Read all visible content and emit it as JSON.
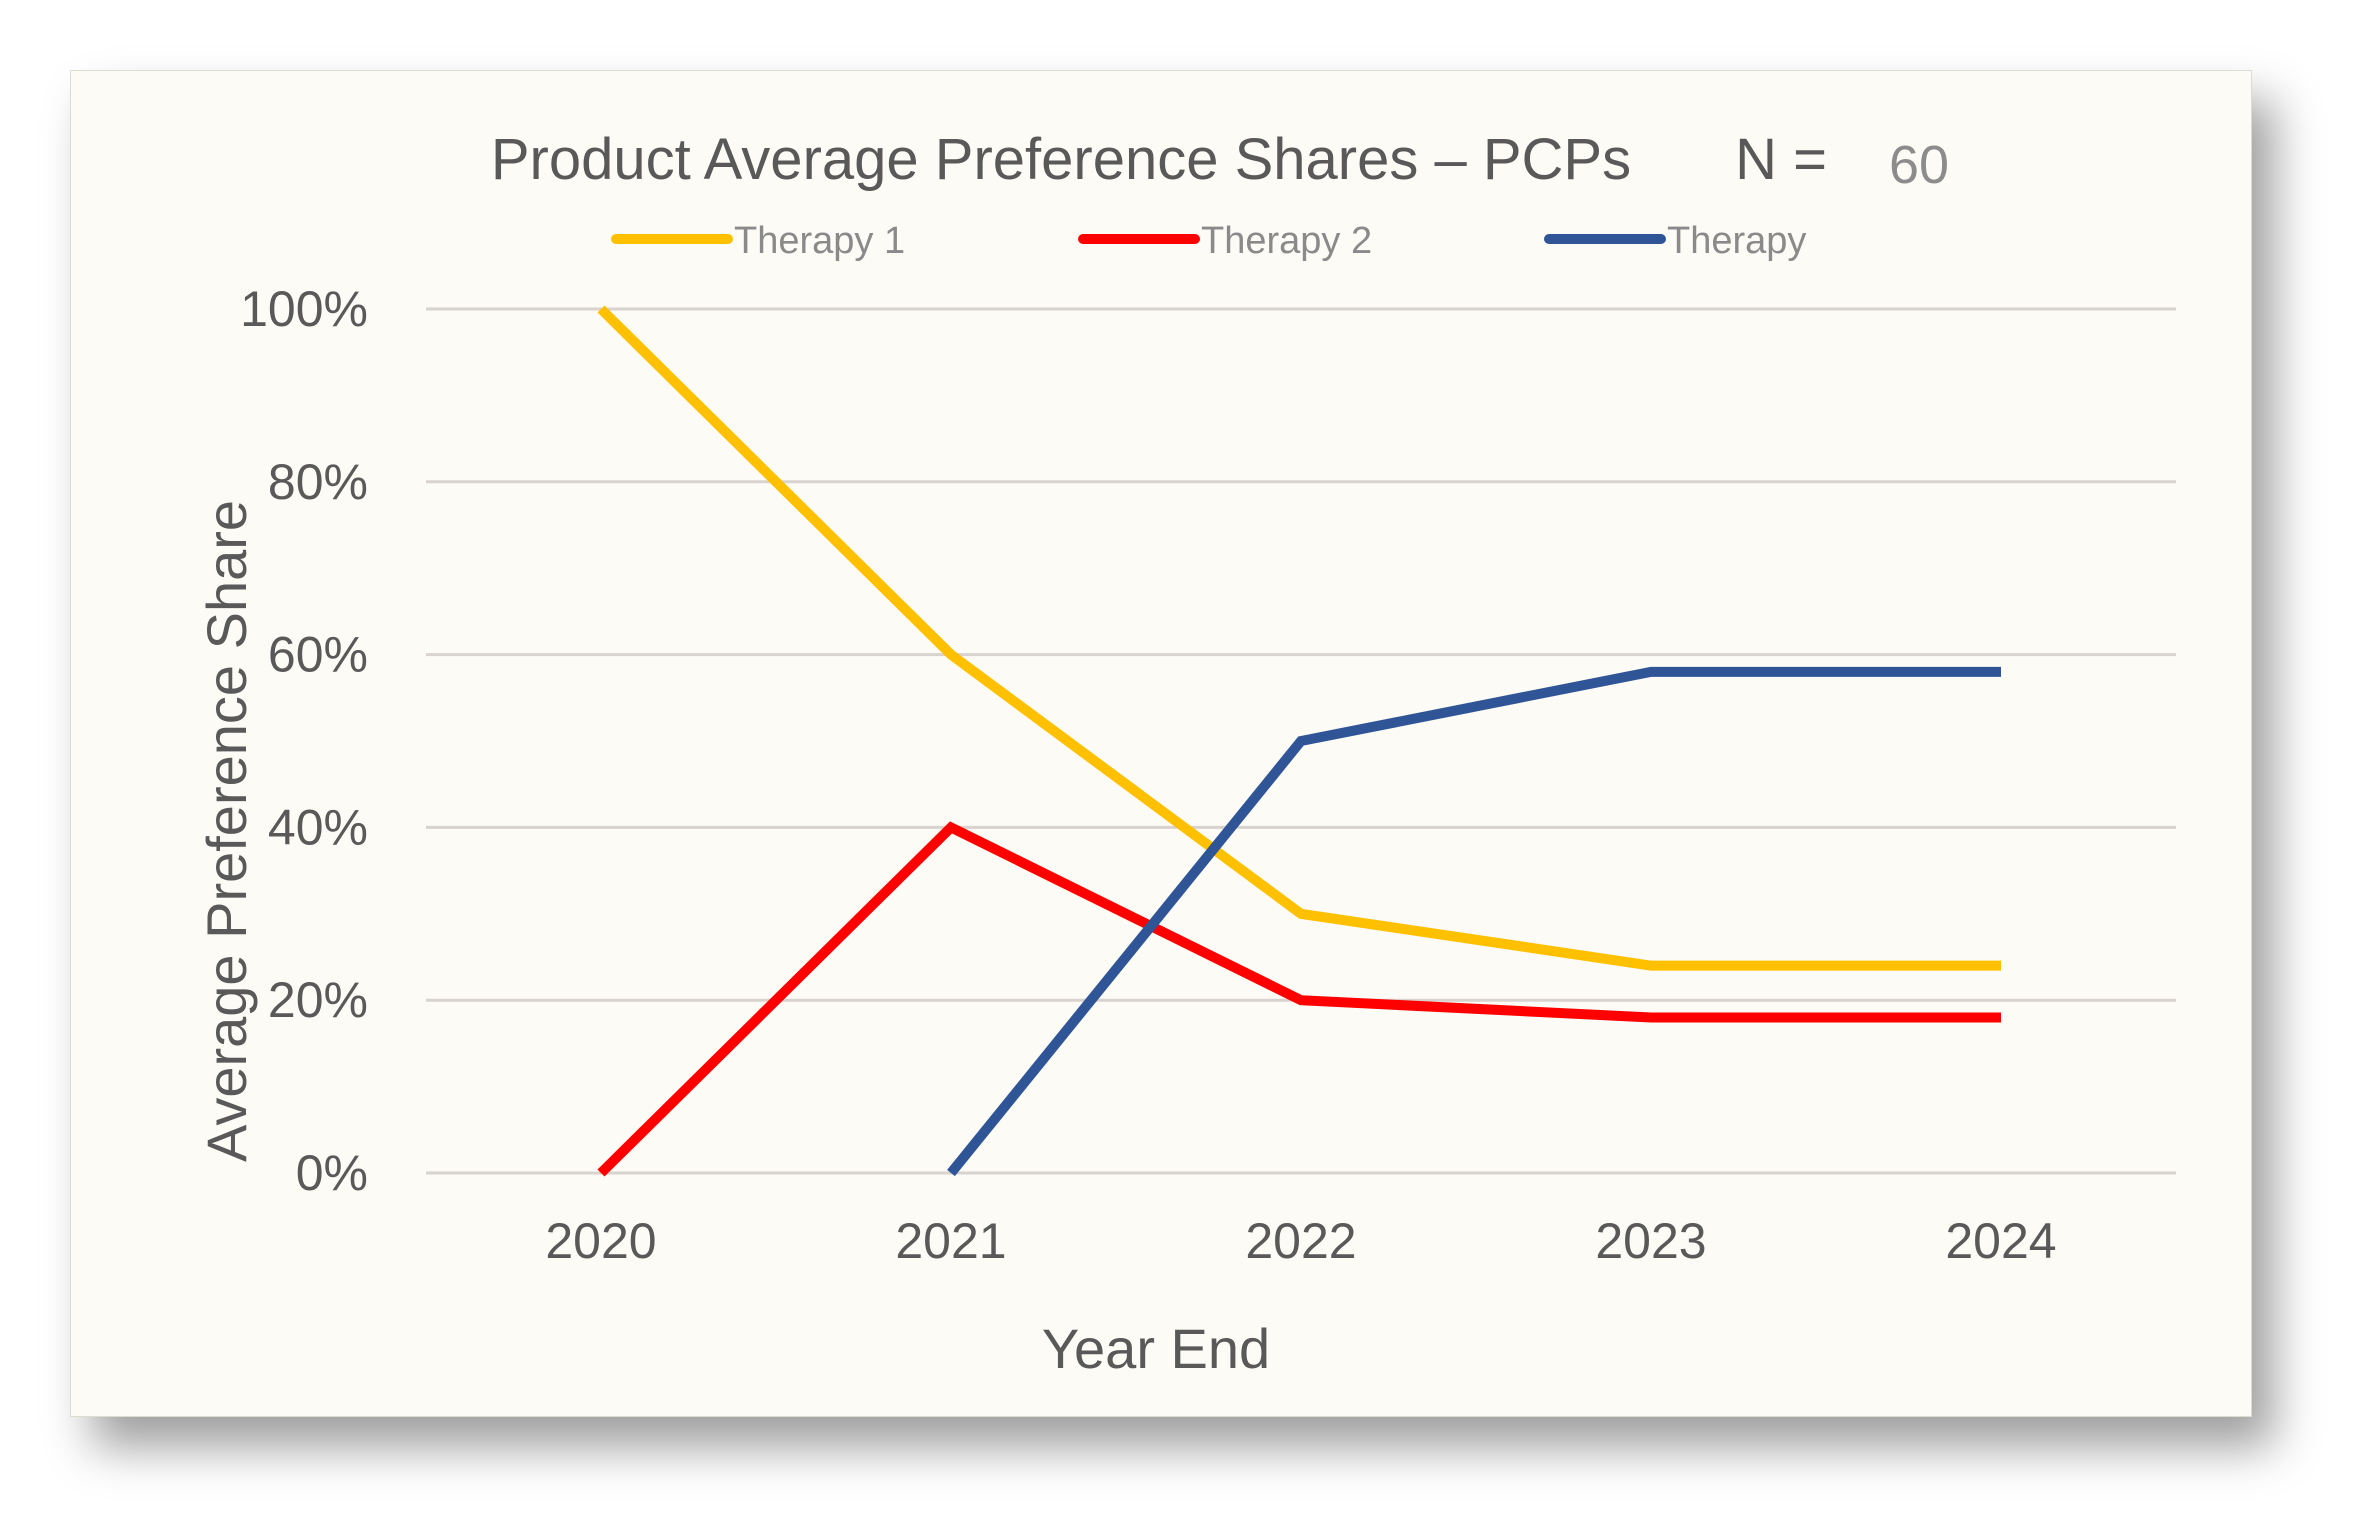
{
  "chart_data": {
    "type": "line",
    "title": "Product Average Preference Shares – PCPs",
    "n_label": "N =",
    "n_value": "60",
    "xlabel": "Year End",
    "ylabel": "Average Preference Share",
    "categories": [
      "2020",
      "2021",
      "2022",
      "2023",
      "2024"
    ],
    "y_ticks": [
      "0%",
      "20%",
      "40%",
      "60%",
      "80%",
      "100%"
    ],
    "ylim": [
      0,
      100
    ],
    "grid": true,
    "legend_position": "top",
    "series": [
      {
        "name": "Therapy 1",
        "color": "#ffc000",
        "values": [
          100,
          60,
          30,
          24,
          24
        ]
      },
      {
        "name": "Therapy 2",
        "color": "#ff0000",
        "values": [
          0,
          40,
          20,
          18,
          18
        ]
      },
      {
        "name": "Therapy",
        "color": "#2f5597",
        "values": [
          null,
          0,
          50,
          58,
          58
        ]
      }
    ]
  }
}
